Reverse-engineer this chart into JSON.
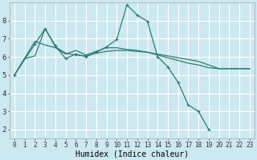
{
  "title": "",
  "xlabel": "Humidex (Indice chaleur)",
  "bg_color": "#cce8f0",
  "grid_color": "#ffffff",
  "line_color": "#2e7d6e",
  "xlim": [
    -0.5,
    23.5
  ],
  "ylim": [
    1.5,
    9.0
  ],
  "xticks": [
    0,
    1,
    2,
    3,
    4,
    5,
    6,
    7,
    8,
    9,
    10,
    11,
    12,
    13,
    14,
    15,
    16,
    17,
    18,
    19,
    20,
    21,
    22,
    23
  ],
  "yticks": [
    2,
    3,
    4,
    5,
    6,
    7,
    8
  ],
  "curve1": {
    "x": [
      0,
      2,
      3,
      4,
      5,
      6,
      7,
      8,
      9,
      10,
      11,
      12,
      13,
      14,
      15,
      16,
      17,
      18,
      19,
      20,
      21,
      22,
      23
    ],
    "y": [
      5.0,
      6.85,
      6.65,
      6.5,
      6.15,
      6.35,
      6.1,
      6.3,
      6.5,
      6.5,
      6.4,
      6.35,
      6.25,
      6.1,
      5.95,
      5.8,
      5.65,
      5.55,
      5.4,
      5.35,
      5.35,
      5.35,
      5.35
    ]
  },
  "curve2": {
    "x": [
      0,
      1,
      2,
      3,
      4,
      5,
      6,
      7,
      8,
      9,
      10,
      11,
      12,
      13,
      14,
      15,
      16,
      17,
      18,
      19,
      20,
      21,
      22,
      23
    ],
    "y": [
      5.0,
      5.9,
      6.05,
      7.55,
      6.55,
      6.2,
      6.1,
      6.05,
      6.2,
      6.3,
      6.35,
      6.35,
      6.3,
      6.25,
      6.15,
      6.05,
      5.95,
      5.85,
      5.75,
      5.55,
      5.35,
      5.35,
      5.35,
      5.35
    ]
  },
  "curve_main": {
    "x": [
      0,
      2,
      3,
      4,
      5,
      6,
      7,
      8,
      9,
      10,
      11,
      12,
      13,
      14,
      15,
      16,
      17,
      18,
      19
    ],
    "y": [
      5.0,
      6.7,
      7.55,
      6.6,
      5.9,
      6.15,
      6.0,
      6.25,
      6.55,
      6.95,
      8.85,
      8.3,
      7.95,
      6.0,
      5.45,
      4.6,
      3.35,
      3.0,
      2.0
    ]
  },
  "xlabel_fontsize": 7,
  "tick_fontsize": 5.5,
  "ytick_fontsize": 6.5
}
